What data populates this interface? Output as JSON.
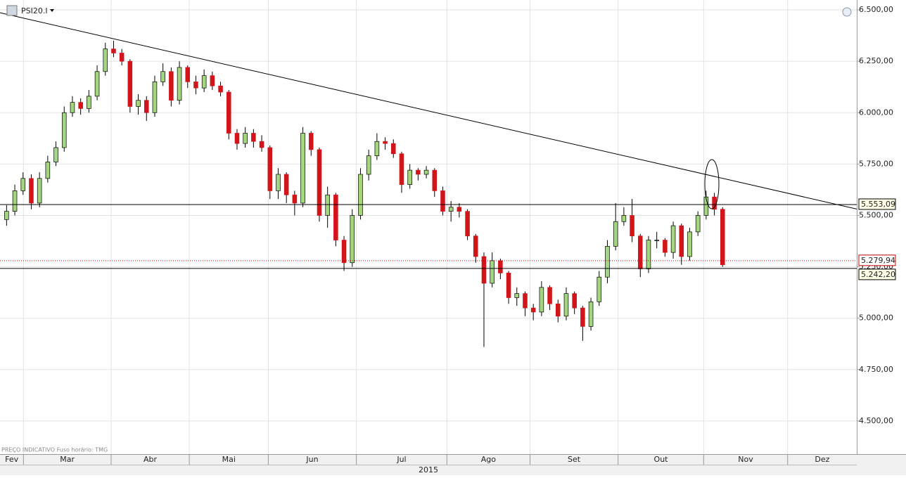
{
  "chart_data": {
    "type": "candlestick",
    "symbol": "PSI20.I",
    "note": "PREÇO INDICATIVO   Fuso horário: TMG",
    "year": "2015",
    "categories": [
      null,
      null,
      null,
      null,
      null,
      null,
      null,
      null,
      null,
      null,
      null,
      null,
      null,
      null,
      null,
      null,
      null,
      null,
      null,
      null,
      null,
      null,
      null,
      null,
      null,
      null,
      null,
      null,
      null,
      null,
      null,
      null,
      null,
      null,
      null,
      null,
      null,
      null,
      null,
      null,
      null,
      null,
      null,
      null,
      null,
      null,
      null,
      null,
      null,
      null,
      null,
      null,
      null,
      null,
      null,
      null,
      null,
      null,
      null,
      null,
      null,
      null,
      null,
      null,
      null,
      null,
      null,
      null,
      null,
      null,
      null,
      null,
      null,
      null,
      null,
      null,
      null,
      null,
      null,
      null,
      null,
      null,
      null,
      null,
      null,
      null,
      null,
      null
    ],
    "open": [
      5480,
      5520,
      5620,
      5680,
      5560,
      5680,
      5760,
      5830,
      6000,
      6050,
      6020,
      6080,
      6200,
      6310,
      6290,
      6250,
      6030,
      6060,
      6000,
      6150,
      6200,
      6060,
      6220,
      6150,
      6120,
      6180,
      6130,
      6100,
      5900,
      5850,
      5900,
      5860,
      5830,
      5620,
      5700,
      5600,
      5560,
      5900,
      5820,
      5500,
      5600,
      5380,
      5270,
      5500,
      5700,
      5790,
      5860,
      5850,
      5800,
      5650,
      5720,
      5700,
      5720,
      5620,
      5520,
      5540,
      5520,
      5400,
      5300,
      5170,
      5280,
      5220,
      5100,
      5120,
      5050,
      5030,
      5150,
      5070,
      5010,
      5120,
      5050,
      4960,
      5080,
      5200,
      5350,
      5470,
      5500,
      5400,
      5240,
      5380,
      5380,
      5320,
      5450,
      5300,
      5420,
      5500,
      5590,
      5530
    ],
    "high": [
      5550,
      5650,
      5710,
      5700,
      5710,
      5790,
      5860,
      6030,
      6080,
      6070,
      6110,
      6230,
      6340,
      6350,
      6310,
      6260,
      6090,
      6080,
      6180,
      6240,
      6220,
      6250,
      6230,
      6180,
      6210,
      6200,
      6150,
      6110,
      5920,
      5930,
      5920,
      5890,
      5840,
      5730,
      5710,
      5620,
      5930,
      5910,
      5830,
      5640,
      5610,
      5400,
      5530,
      5730,
      5820,
      5900,
      5880,
      5870,
      5810,
      5750,
      5730,
      5740,
      5730,
      5640,
      5570,
      5560,
      5530,
      5410,
      5320,
      5320,
      5290,
      5230,
      5150,
      5130,
      5070,
      5180,
      5160,
      5090,
      5150,
      5130,
      5060,
      5100,
      5230,
      5380,
      5560,
      5540,
      5580,
      5410,
      5400,
      5420,
      5390,
      5470,
      5460,
      5440,
      5520,
      5620,
      5610,
      5540
    ],
    "low": [
      5450,
      5500,
      5600,
      5530,
      5540,
      5660,
      5740,
      5810,
      5980,
      5990,
      6000,
      6060,
      6180,
      6270,
      6230,
      6000,
      5990,
      5960,
      5980,
      6130,
      6030,
      6040,
      6120,
      6090,
      6100,
      6110,
      6080,
      5870,
      5820,
      5830,
      5830,
      5810,
      5580,
      5580,
      5560,
      5500,
      5540,
      5790,
      5470,
      5440,
      5350,
      5230,
      5250,
      5480,
      5670,
      5770,
      5820,
      5780,
      5610,
      5630,
      5670,
      5680,
      5590,
      5500,
      5470,
      5490,
      5380,
      5270,
      4860,
      5150,
      5190,
      5070,
      5060,
      5010,
      4990,
      5010,
      5040,
      4980,
      4990,
      5020,
      4890,
      4940,
      5060,
      5170,
      5330,
      5450,
      5370,
      5200,
      5220,
      5340,
      5300,
      5290,
      5260,
      5280,
      5400,
      5480,
      5500,
      5250
    ],
    "close": [
      5520,
      5620,
      5680,
      5560,
      5680,
      5760,
      5830,
      6000,
      6050,
      6020,
      6080,
      6200,
      6310,
      6290,
      6250,
      6030,
      6060,
      6000,
      6150,
      6200,
      6060,
      6220,
      6150,
      6120,
      6180,
      6130,
      6100,
      5900,
      5850,
      5900,
      5860,
      5830,
      5620,
      5700,
      5600,
      5560,
      5900,
      5820,
      5500,
      5600,
      5380,
      5270,
      5500,
      5700,
      5790,
      5860,
      5850,
      5800,
      5650,
      5720,
      5700,
      5720,
      5620,
      5520,
      5540,
      5520,
      5400,
      5300,
      5170,
      5280,
      5220,
      5100,
      5120,
      5050,
      5030,
      5150,
      5070,
      5010,
      5120,
      5050,
      4960,
      5080,
      5200,
      5350,
      5470,
      5500,
      5400,
      5240,
      5380,
      5380,
      5320,
      5450,
      5300,
      5420,
      5500,
      5590,
      5530,
      5260
    ],
    "up_color": "#a3d67f",
    "down_color": "#d0151b",
    "xlim": [
      -0.8,
      103.3
    ],
    "xticks": [
      {
        "value": -2.8,
        "label": "Fev"
      },
      {
        "value": 2.05,
        "label": "Mar"
      },
      {
        "value": 12.7,
        "label": "Abr"
      },
      {
        "value": 22.2,
        "label": "Mai"
      },
      {
        "value": 31.8,
        "label": "Jun"
      },
      {
        "value": 42.5,
        "label": "Jul"
      },
      {
        "value": 53.5,
        "label": "Ago"
      },
      {
        "value": 63.6,
        "label": "Set"
      },
      {
        "value": 74.3,
        "label": "Out"
      },
      {
        "value": 84.7,
        "label": "Nov"
      },
      {
        "value": 94.9,
        "label": "Dez"
      }
    ],
    "ylim": [
      4339,
      6548
    ],
    "yticks": [
      {
        "value": 4500,
        "label": "4.500,00"
      },
      {
        "value": 4750,
        "label": "4.750,00"
      },
      {
        "value": 5000,
        "label": "5.000,00"
      },
      {
        "value": 5250,
        "label": "5.250,00"
      },
      {
        "value": 5500,
        "label": "5.500,00"
      },
      {
        "value": 5750,
        "label": "5.750,00"
      },
      {
        "value": 6000,
        "label": "6.000,00"
      },
      {
        "value": 6250,
        "label": "6.250,00"
      },
      {
        "value": 6500,
        "label": "6.500,00"
      }
    ],
    "grid": true,
    "levels": [
      {
        "value": 5553.09,
        "label": "5.553,09",
        "color": "#000000",
        "dotted": false
      },
      {
        "value": 5279.94,
        "label": "5.279,94",
        "color": "#c00000",
        "dotted": true
      },
      {
        "value": 5242.2,
        "label": "5.242,20",
        "color": "#000000",
        "dotted": false
      }
    ],
    "trend_line": {
      "x": [
        -0.8,
        103.3
      ],
      "y": [
        6486,
        5531
      ]
    }
  }
}
